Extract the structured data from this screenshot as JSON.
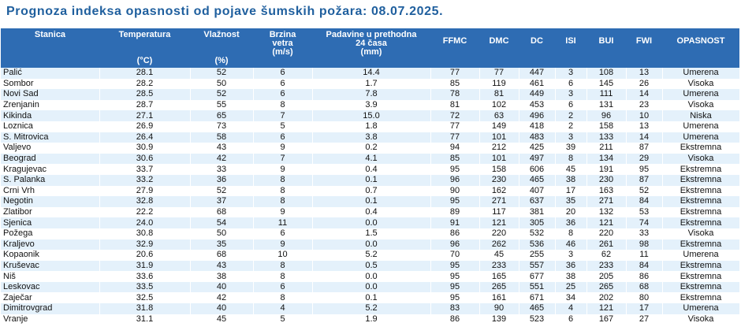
{
  "title": "Prognoza indeksa opasnosti od pojave šumskih požara: 08.07.2025.",
  "headers": {
    "stanica": "Stanica",
    "temperatura": "Temperatura",
    "temperatura_unit": "(°C)",
    "vlaznost": "Vlažnost",
    "vlaznost_unit": "(%)",
    "brzina": "Brzina vetra",
    "brzina_unit": "(m/s)",
    "padavine": "Padavine u prethodna 24 časa",
    "padavine_unit": "(mm)",
    "ffmc": "FFMC",
    "dmc": "DMC",
    "dc": "DC",
    "isi": "ISI",
    "bui": "BUI",
    "fwi": "FWI",
    "opasnost": "OPASNOST"
  },
  "rows": [
    [
      "Palić",
      "28.1",
      "52",
      "6",
      "14.4",
      "77",
      "77",
      "447",
      "3",
      "108",
      "13",
      "Umerena"
    ],
    [
      "Sombor",
      "28.2",
      "50",
      "6",
      "1.7",
      "85",
      "119",
      "461",
      "6",
      "145",
      "26",
      "Visoka"
    ],
    [
      "Novi Sad",
      "28.5",
      "52",
      "6",
      "7.8",
      "78",
      "81",
      "449",
      "3",
      "111",
      "14",
      "Umerena"
    ],
    [
      "Zrenjanin",
      "28.7",
      "55",
      "8",
      "3.9",
      "81",
      "102",
      "453",
      "6",
      "131",
      "23",
      "Visoka"
    ],
    [
      "Kikinda",
      "27.1",
      "65",
      "7",
      "15.0",
      "72",
      "63",
      "496",
      "2",
      "96",
      "10",
      "Niska"
    ],
    [
      "Loznica",
      "26.9",
      "73",
      "5",
      "1.8",
      "77",
      "149",
      "418",
      "2",
      "158",
      "13",
      "Umerena"
    ],
    [
      "S. Mitrovica",
      "26.4",
      "58",
      "6",
      "3.8",
      "77",
      "101",
      "483",
      "3",
      "133",
      "14",
      "Umerena"
    ],
    [
      "Valjevo",
      "30.9",
      "43",
      "9",
      "0.2",
      "94",
      "212",
      "425",
      "39",
      "211",
      "87",
      "Ekstremna"
    ],
    [
      "Beograd",
      "30.6",
      "42",
      "7",
      "4.1",
      "85",
      "101",
      "497",
      "8",
      "134",
      "29",
      "Visoka"
    ],
    [
      "Kragujevac",
      "33.7",
      "33",
      "9",
      "0.4",
      "95",
      "158",
      "606",
      "45",
      "191",
      "95",
      "Ekstremna"
    ],
    [
      "S. Palanka",
      "33.2",
      "36",
      "8",
      "0.1",
      "96",
      "230",
      "465",
      "38",
      "230",
      "87",
      "Ekstremna"
    ],
    [
      "Crni Vrh",
      "27.9",
      "52",
      "8",
      "0.7",
      "90",
      "162",
      "407",
      "17",
      "163",
      "52",
      "Ekstremna"
    ],
    [
      "Negotin",
      "32.8",
      "37",
      "8",
      "0.1",
      "95",
      "271",
      "637",
      "35",
      "271",
      "84",
      "Ekstremna"
    ],
    [
      "Zlatibor",
      "22.2",
      "68",
      "9",
      "0.4",
      "89",
      "117",
      "381",
      "20",
      "132",
      "53",
      "Ekstremna"
    ],
    [
      "Sjenica",
      "24.0",
      "54",
      "11",
      "0.0",
      "91",
      "121",
      "305",
      "36",
      "121",
      "74",
      "Ekstremna"
    ],
    [
      "Požega",
      "30.8",
      "50",
      "6",
      "1.5",
      "86",
      "220",
      "532",
      "8",
      "220",
      "33",
      "Visoka"
    ],
    [
      "Kraljevo",
      "32.9",
      "35",
      "9",
      "0.0",
      "96",
      "262",
      "536",
      "46",
      "261",
      "98",
      "Ekstremna"
    ],
    [
      "Kopaonik",
      "20.6",
      "68",
      "10",
      "5.2",
      "70",
      "45",
      "255",
      "3",
      "62",
      "11",
      "Umerena"
    ],
    [
      "Kruševac",
      "31.9",
      "43",
      "8",
      "0.5",
      "95",
      "233",
      "557",
      "36",
      "233",
      "84",
      "Ekstremna"
    ],
    [
      "Niš",
      "33.6",
      "38",
      "8",
      "0.0",
      "95",
      "165",
      "677",
      "38",
      "205",
      "86",
      "Ekstremna"
    ],
    [
      "Leskovac",
      "33.5",
      "40",
      "6",
      "0.0",
      "95",
      "265",
      "551",
      "25",
      "265",
      "68",
      "Ekstremna"
    ],
    [
      "Zaječar",
      "32.5",
      "42",
      "8",
      "0.1",
      "95",
      "161",
      "671",
      "34",
      "202",
      "80",
      "Ekstremna"
    ],
    [
      "Dimitrovgrad",
      "31.8",
      "40",
      "4",
      "5.2",
      "83",
      "90",
      "465",
      "4",
      "121",
      "17",
      "Umerena"
    ],
    [
      "Vranje",
      "31.1",
      "45",
      "5",
      "1.9",
      "86",
      "139",
      "523",
      "6",
      "167",
      "27",
      "Visoka"
    ]
  ]
}
